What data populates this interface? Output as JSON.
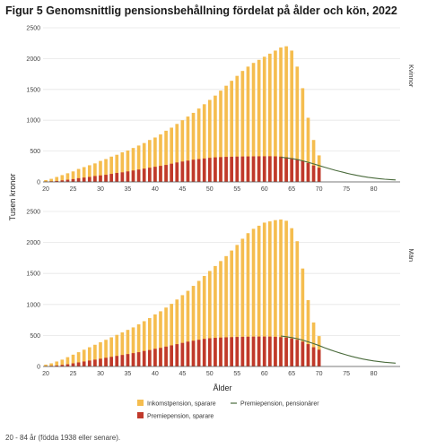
{
  "title": "Figur 5 Genomsnittlig pensionsbehållning fördelat på ålder och kön, 2022",
  "footnote": "20 - 84 år (födda 1938 eller senare).",
  "colors": {
    "inkomst": "#f5bd4f",
    "premie": "#c0392b",
    "premie_pens": "#4a6b3c",
    "grid": "#e6e6e6",
    "axis": "#555555"
  },
  "chart_data": {
    "type": "bar",
    "ylabel": "Tusen kronor",
    "xlabel": "Ålder",
    "legend_position": "bottom",
    "grid": true,
    "legend": [
      {
        "key": "inkomst",
        "label": "Inkomstpension, sparare"
      },
      {
        "key": "premie_pens",
        "label": "Premiepension, pensionärer"
      },
      {
        "key": "premie",
        "label": "Premiepension, sparare"
      }
    ],
    "x": [
      20,
      21,
      22,
      23,
      24,
      25,
      26,
      27,
      28,
      29,
      30,
      31,
      32,
      33,
      34,
      35,
      36,
      37,
      38,
      39,
      40,
      41,
      42,
      43,
      44,
      45,
      46,
      47,
      48,
      49,
      50,
      51,
      52,
      53,
      54,
      55,
      56,
      57,
      58,
      59,
      60,
      61,
      62,
      63,
      64,
      65,
      66,
      67,
      68,
      69,
      70,
      71,
      72,
      73,
      74,
      75,
      76,
      77,
      78,
      79,
      80,
      81,
      82,
      83,
      84
    ],
    "xticks": [
      20,
      25,
      30,
      35,
      40,
      45,
      50,
      55,
      60,
      65,
      70,
      75,
      80
    ],
    "ylim": [
      0,
      2500
    ],
    "yticks": [
      0,
      500,
      1000,
      1500,
      2000,
      2500
    ],
    "panels": [
      {
        "name": "Kvinnor",
        "series": [
          {
            "name": "Inkomstpension, sparare",
            "key": "inkomst",
            "values": [
              30,
              50,
              80,
              110,
              140,
              170,
              210,
              240,
              270,
              300,
              340,
              370,
              410,
              440,
              480,
              510,
              550,
              590,
              630,
              680,
              720,
              770,
              830,
              880,
              940,
              1000,
              1060,
              1120,
              1190,
              1260,
              1330,
              1400,
              1480,
              1560,
              1640,
              1720,
              1800,
              1870,
              1930,
              1980,
              2030,
              2080,
              2130,
              2180,
              2200,
              2130,
              1870,
              1520,
              1040,
              680,
              430,
              null,
              null,
              null,
              null,
              null,
              null,
              null,
              null,
              null,
              null,
              null,
              null,
              null,
              null
            ]
          },
          {
            "name": "Premiepension, sparare",
            "key": "premie",
            "values": [
              5,
              10,
              15,
              25,
              35,
              45,
              60,
              70,
              80,
              95,
              105,
              115,
              130,
              145,
              155,
              170,
              185,
              200,
              215,
              230,
              245,
              260,
              275,
              295,
              315,
              330,
              345,
              360,
              370,
              380,
              390,
              398,
              402,
              406,
              408,
              410,
              412,
              413,
              414,
              415,
              415,
              416,
              414,
              410,
              400,
              385,
              365,
              340,
              305,
              265,
              230,
              null,
              null,
              null,
              null,
              null,
              null,
              null,
              null,
              null,
              null,
              null,
              null,
              null,
              null
            ]
          },
          {
            "name": "Premiepension, pensionärer",
            "key": "premie_pens",
            "values": [
              null,
              null,
              null,
              null,
              null,
              null,
              null,
              null,
              null,
              null,
              null,
              null,
              null,
              null,
              null,
              null,
              null,
              null,
              null,
              null,
              null,
              null,
              null,
              null,
              null,
              null,
              null,
              null,
              null,
              null,
              null,
              null,
              null,
              null,
              null,
              null,
              null,
              null,
              null,
              null,
              null,
              null,
              null,
              400,
              390,
              378,
              362,
              342,
              318,
              292,
              265,
              238,
              212,
              188,
              165,
              142,
              122,
              104,
              88,
              74,
              62,
              52,
              44,
              38,
              32
            ]
          }
        ]
      },
      {
        "name": "Män",
        "series": [
          {
            "name": "Inkomstpension, sparare",
            "key": "inkomst",
            "values": [
              30,
              50,
              80,
              110,
              150,
              190,
              230,
              270,
              310,
              350,
              390,
              430,
              470,
              510,
              550,
              590,
              630,
              680,
              730,
              780,
              840,
              890,
              950,
              1010,
              1080,
              1150,
              1220,
              1300,
              1380,
              1460,
              1540,
              1620,
              1700,
              1780,
              1870,
              1960,
              2060,
              2150,
              2220,
              2270,
              2320,
              2340,
              2360,
              2370,
              2350,
              2230,
              2020,
              1580,
              1070,
              710,
              490,
              null,
              null,
              null,
              null,
              null,
              null,
              null,
              null,
              null,
              null,
              null,
              null,
              null,
              null
            ]
          },
          {
            "name": "Premiepension, sparare",
            "key": "premie",
            "values": [
              5,
              10,
              15,
              25,
              35,
              50,
              65,
              80,
              95,
              110,
              125,
              140,
              155,
              170,
              185,
              200,
              215,
              230,
              250,
              265,
              285,
              300,
              320,
              340,
              360,
              380,
              400,
              415,
              430,
              445,
              455,
              462,
              466,
              470,
              473,
              476,
              478,
              480,
              481,
              482,
              482,
              481,
              478,
              473,
              465,
              450,
              430,
              400,
              360,
              310,
              270,
              null,
              null,
              null,
              null,
              null,
              null,
              null,
              null,
              null,
              null,
              null,
              null,
              null,
              null
            ]
          },
          {
            "name": "Premiepension, pensionärer",
            "key": "premie_pens",
            "values": [
              null,
              null,
              null,
              null,
              null,
              null,
              null,
              null,
              null,
              null,
              null,
              null,
              null,
              null,
              null,
              null,
              null,
              null,
              null,
              null,
              null,
              null,
              null,
              null,
              null,
              null,
              null,
              null,
              null,
              null,
              null,
              null,
              null,
              null,
              null,
              null,
              null,
              null,
              null,
              null,
              null,
              null,
              null,
              492,
              480,
              465,
              448,
              425,
              398,
              368,
              336,
              302,
              270,
              240,
              212,
              186,
              162,
              140,
              120,
              104,
              90,
              78,
              68,
              60,
              54
            ]
          }
        ]
      }
    ]
  }
}
